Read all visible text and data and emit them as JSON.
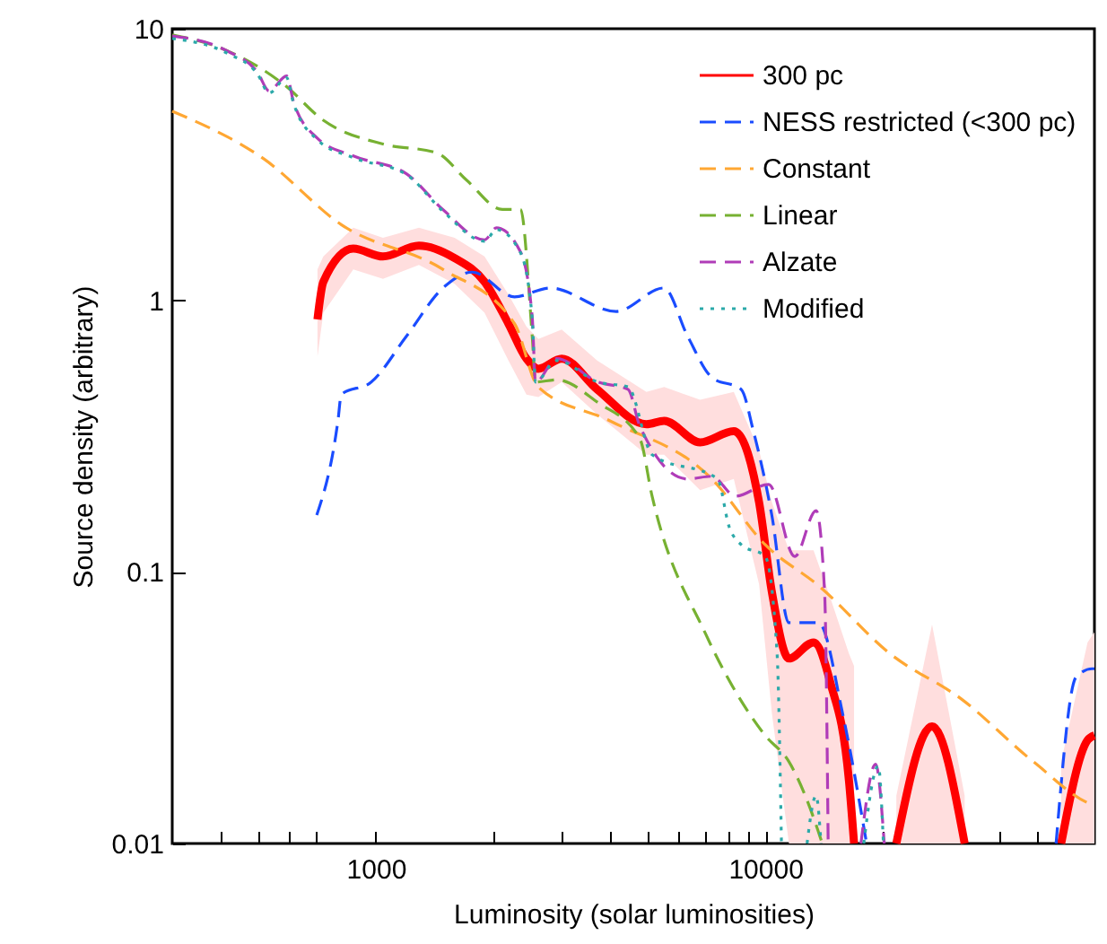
{
  "chart_data": {
    "type": "line",
    "xlabel": "Luminosity (solar luminosities)",
    "ylabel": "Source density (arbitrary)",
    "log": "xy",
    "legend": "top right",
    "xlim": [
      300,
      70000
    ],
    "ylim": [
      0.01,
      10
    ],
    "xticks": [
      {
        "value": 400,
        "label": null
      },
      {
        "value": 500,
        "label": null
      },
      {
        "value": 600,
        "label": null
      },
      {
        "value": 700,
        "label": null
      },
      1000,
      {
        "value": 2000,
        "label": null
      },
      {
        "value": 3000,
        "label": null
      },
      {
        "value": 4000,
        "label": null
      },
      {
        "value": 5000,
        "label": null
      },
      {
        "value": 6000,
        "label": null
      },
      {
        "value": 7000,
        "label": null
      },
      {
        "value": 8000,
        "label": null
      },
      {
        "value": 9000,
        "label": null
      },
      10000,
      {
        "value": 20000,
        "label": null
      },
      {
        "value": 30000,
        "label": null
      },
      {
        "value": 40000,
        "label": null
      },
      {
        "value": 50000,
        "label": null
      },
      {
        "value": 60000,
        "label": null
      }
    ],
    "yticks": [
      0.01,
      0.1,
      1,
      10
    ],
    "series": [
      {
        "name": "300 pc",
        "color": "#ff0000",
        "line_style": "solid",
        "x": [
          708,
          733,
          875,
          1043,
          1290,
          1593,
          1901,
          2190,
          2436,
          2614,
          3000,
          3700,
          4950,
          5500,
          6800,
          8300,
          9640,
          10400,
          11500,
          13300,
          14700,
          16400,
          16900,
          19000,
          21700,
          26800,
          32500,
          45000,
          57500,
          67200,
          70000
        ],
        "values": [
          0.85,
          1.17,
          1.55,
          1.45,
          1.59,
          1.43,
          1.17,
          0.82,
          0.61,
          0.56,
          0.61,
          0.47,
          0.35,
          0.36,
          0.3,
          0.33,
          0.18,
          0.084,
          0.048,
          0.055,
          0.039,
          0.017,
          0.01,
          null,
          0.01,
          0.027,
          0.01,
          null,
          0.01,
          0.024,
          0.025
        ],
        "lower": [
          0.62,
          0.9,
          1.3,
          1.2,
          1.35,
          1.15,
          0.9,
          0.6,
          0.45,
          0.44,
          0.5,
          0.38,
          0.27,
          0.27,
          0.2,
          0.22,
          0.09,
          0.03,
          0.01,
          0.01,
          0.01,
          0.01,
          0.01,
          null,
          0.01,
          0.01,
          0.01,
          null,
          0.01,
          0.01,
          0.01
        ],
        "upper": [
          1.3,
          1.45,
          1.85,
          1.7,
          1.85,
          1.7,
          1.45,
          1.05,
          0.8,
          0.72,
          0.78,
          0.6,
          0.46,
          0.48,
          0.43,
          0.46,
          0.28,
          0.18,
          0.12,
          0.12,
          0.08,
          0.05,
          0.045,
          null,
          0.015,
          0.064,
          0.015,
          null,
          0.02,
          0.055,
          0.06
        ]
      },
      {
        "name": "NESS restricted (<300 pc)",
        "color": "#1a4cff",
        "line_style": "dashed",
        "x": [
          705,
          800,
          815,
          973,
          1200,
          1486,
          1770,
          2270,
          2800,
          4140,
          5490,
          6310,
          7290,
          8670,
          9320,
          10390,
          11500,
          13700,
          15800,
          18200,
          30000,
          55800,
          62800,
          69000,
          70000
        ],
        "values": [
          0.162,
          0.365,
          0.45,
          0.5,
          0.74,
          1.11,
          1.27,
          1.03,
          1.11,
          0.91,
          1.11,
          0.74,
          0.52,
          0.47,
          0.33,
          0.162,
          0.065,
          0.065,
          0.03,
          0.01,
          null,
          0.01,
          0.041,
          0.044,
          0.044
        ]
      },
      {
        "name": "Constant",
        "color": "#ffa733",
        "line_style": "dashed",
        "x": [
          300,
          515,
          815,
          1486,
          2270,
          2610,
          3990,
          7290,
          9990,
          13700,
          20900,
          31900,
          48800,
          69000,
          70000
        ],
        "values": [
          4.97,
          3.32,
          1.9,
          1.3,
          0.82,
          0.48,
          0.36,
          0.22,
          0.126,
          0.089,
          0.05,
          0.034,
          0.02,
          0.0139,
          0.0138
        ]
      },
      {
        "name": "Linear",
        "color": "#77b132",
        "line_style": "dashed",
        "x": [
          300,
          402,
          583,
          733,
          1043,
          1432,
          1710,
          2113,
          2350,
          2520,
          2570,
          2910,
          3720,
          4760,
          5120,
          7030,
          9990,
          11500,
          13700,
          14000
        ],
        "values": [
          9.5,
          8.46,
          6.2,
          4.6,
          3.76,
          3.49,
          2.77,
          2.16,
          2.16,
          0.74,
          0.5,
          0.51,
          0.42,
          0.31,
          0.19,
          0.059,
          0.025,
          0.02,
          0.011,
          0.01
        ]
      },
      {
        "name": "Alzate",
        "color": "#b03cb8",
        "line_style": "dashed",
        "x": [
          300,
          417,
          497,
          532,
          590,
          615,
          708,
          875,
          1200,
          1486,
          1901,
          2040,
          2350,
          2520,
          2570,
          2910,
          3720,
          4440,
          4760,
          6310,
          7290,
          8380,
          10200,
          11900,
          13500,
          14200,
          14500,
          16000,
          17600,
          19200,
          20200
        ],
        "values": [
          9.4,
          8.26,
          6.9,
          5.9,
          6.7,
          5.36,
          3.95,
          3.4,
          2.92,
          2.16,
          1.67,
          1.85,
          1.51,
          0.87,
          0.5,
          0.61,
          0.5,
          0.47,
          0.345,
          0.22,
          0.225,
          0.19,
          0.21,
          0.114,
          0.168,
          0.084,
          0.01,
          null,
          0.01,
          0.0196,
          0.01
        ]
      },
      {
        "name": "Modified",
        "color": "#2ba9a9",
        "line_style": "dotted",
        "x": [
          300,
          417,
          497,
          532,
          590,
          615,
          708,
          875,
          1200,
          1486,
          1901,
          2040,
          2350,
          2520,
          2570,
          2910,
          3720,
          4440,
          5120,
          7540,
          8070,
          8670,
          9990,
          10720,
          11000,
          12000,
          12800,
          13500,
          13900,
          16000,
          17900,
          19500,
          20100
        ],
        "values": [
          9.2,
          8.1,
          6.8,
          5.8,
          6.6,
          5.3,
          3.9,
          3.35,
          2.9,
          2.13,
          1.65,
          1.82,
          1.5,
          0.86,
          0.5,
          0.6,
          0.5,
          0.48,
          0.27,
          0.22,
          0.147,
          0.126,
          0.114,
          0.05,
          0.01,
          null,
          0.01,
          0.015,
          0.01,
          null,
          0.01,
          0.0193,
          0.01
        ]
      }
    ]
  }
}
